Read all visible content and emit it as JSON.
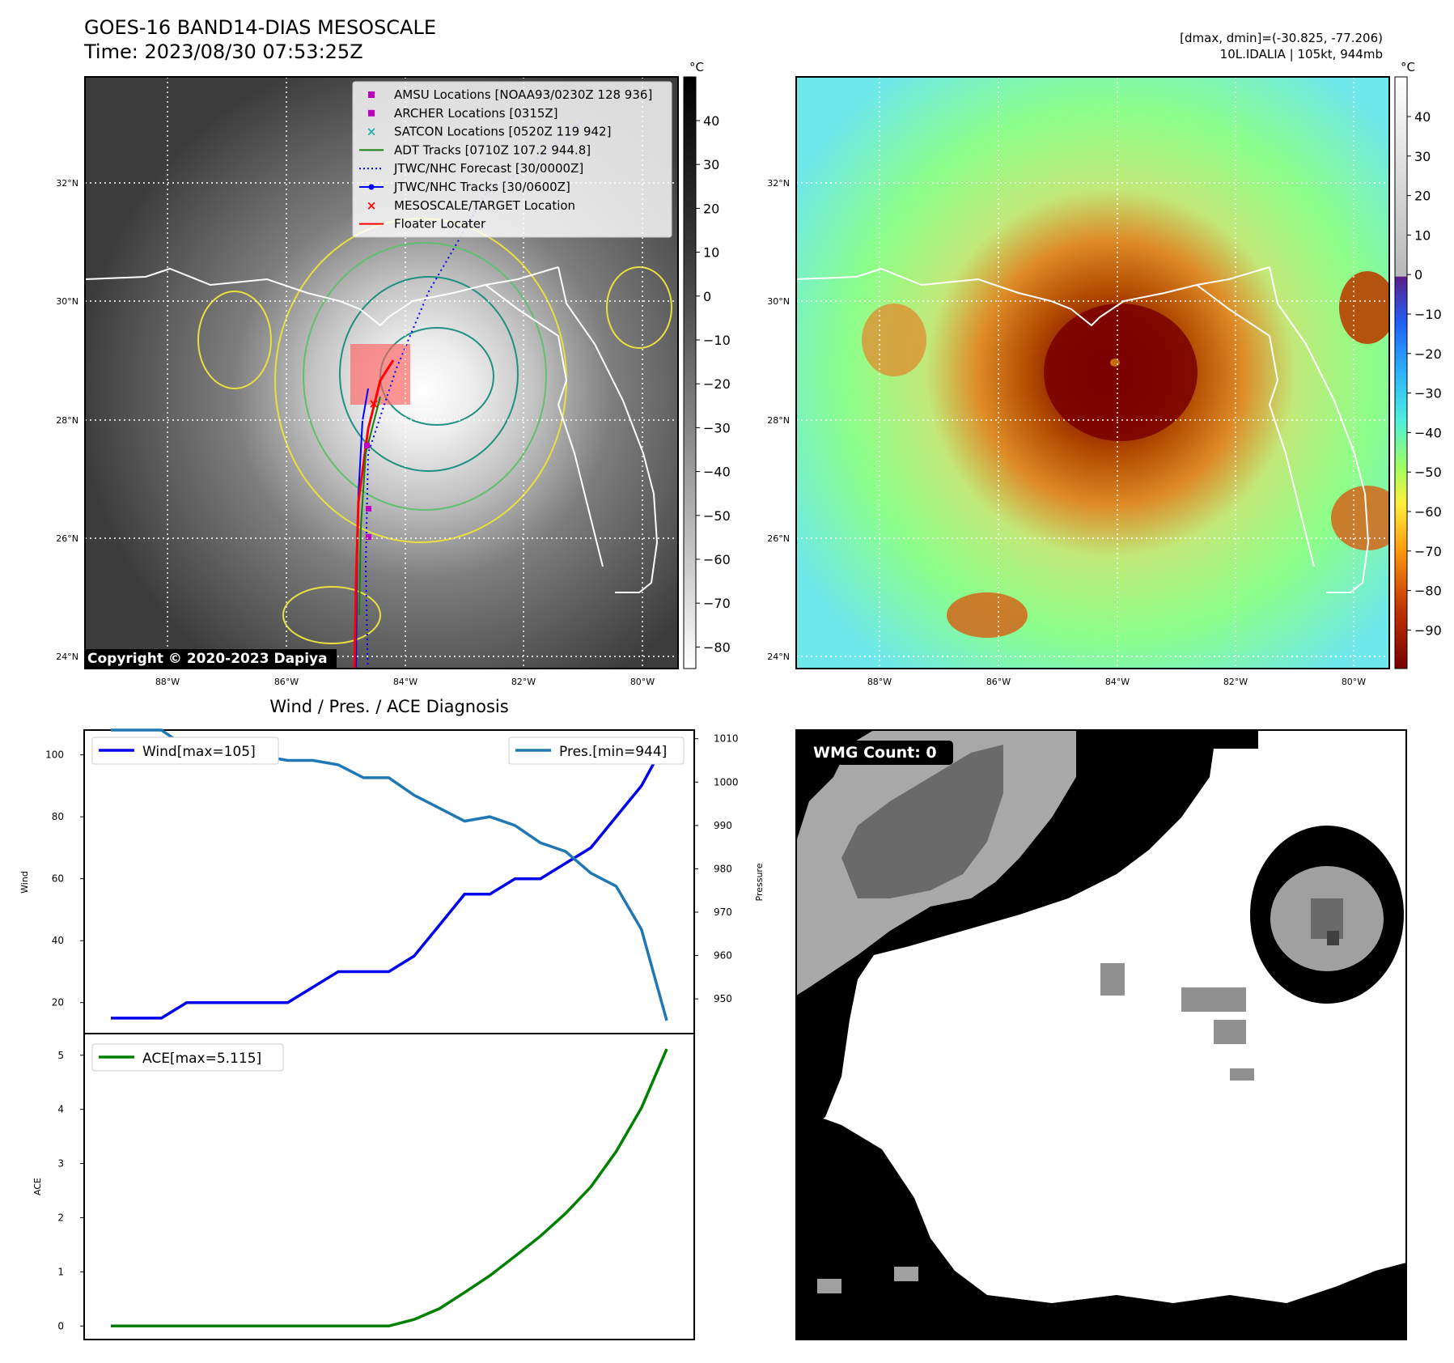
{
  "header": {
    "title": "GOES-16 BAND14-DIAS MESOSCALE",
    "time": "Time: 2023/08/30 07:53:25Z",
    "dmax_dmin": "[dmax, dmin]=(-30.825, -77.206)",
    "storm": "10L.IDALIA | 105kt, 944mb"
  },
  "map_axes": {
    "lat_labels": [
      "32°N",
      "30°N",
      "28°N",
      "26°N",
      "24°N"
    ],
    "lon_labels": [
      "88°W",
      "86°W",
      "84°W",
      "82°W",
      "80°W"
    ]
  },
  "colorbar_left": {
    "unit": "°C",
    "ticks": [
      "40",
      "30",
      "20",
      "10",
      "0",
      "−10",
      "−20",
      "−30",
      "−40",
      "−50",
      "−60",
      "−70",
      "−80"
    ]
  },
  "colorbar_right": {
    "unit": "°C",
    "ticks": [
      "40",
      "30",
      "20",
      "10",
      "0",
      "−10",
      "−20",
      "−30",
      "−40",
      "−50",
      "−60",
      "−70",
      "−80",
      "−90"
    ]
  },
  "legend": [
    {
      "label": "AMSU Locations [NOAA93/0230Z 128 936]",
      "marker": "square",
      "color": "#c000c0"
    },
    {
      "label": "ARCHER Locations [0315Z]",
      "marker": "square",
      "color": "#c000c0"
    },
    {
      "label": "SATCON Locations [0520Z 119 942]",
      "marker": "x",
      "color": "#20b0b0"
    },
    {
      "label": "ADT Tracks [0710Z 107.2 944.8]",
      "marker": "line",
      "color": "#108010"
    },
    {
      "label": "JTWC/NHC Forecast [30/0000Z]",
      "marker": "dotted",
      "color": "#0000ff"
    },
    {
      "label": "JTWC/NHC Tracks [30/0600Z]",
      "marker": "line-dot",
      "color": "#0000ff"
    },
    {
      "label": "MESOSCALE/TARGET Location",
      "marker": "x",
      "color": "#ff0000"
    },
    {
      "label": "Floater Locater",
      "marker": "line",
      "color": "#ff0000"
    }
  ],
  "copyright": "Copyright © 2020-2023 Dapiya",
  "wind_panel_title": "Wind / Pres. / ACE Diagnosis",
  "wmg_label": "WMG Count: 0",
  "colors": {
    "wind": "#0000ee",
    "pressure": "#1f77b4",
    "ace": "#008000"
  },
  "chart_data": [
    {
      "type": "line",
      "ylabel": "Wind",
      "y2label": "Pressure",
      "ylim": [
        10,
        108
      ],
      "y2lim": [
        942,
        1012
      ],
      "yticks": [
        20,
        40,
        60,
        80,
        100
      ],
      "y2ticks": [
        950,
        960,
        970,
        980,
        990,
        1000,
        1010
      ],
      "series": [
        {
          "name": "Wind[max=105]",
          "axis": "left",
          "values": [
            15,
            15,
            15,
            20,
            20,
            20,
            20,
            20,
            25,
            30,
            30,
            30,
            35,
            45,
            55,
            55,
            60,
            60,
            65,
            70,
            80,
            90,
            105
          ]
        },
        {
          "name": "Pres.[min=944]",
          "axis": "right",
          "values": [
            1012,
            1012,
            1012,
            1008,
            1007,
            1006,
            1006,
            1005,
            1005,
            1004,
            1001,
            1001,
            997,
            994,
            991,
            992,
            990,
            986,
            984,
            979,
            976,
            966,
            945
          ]
        }
      ]
    },
    {
      "type": "line",
      "ylabel": "ACE",
      "ylim": [
        -0.25,
        5.4
      ],
      "yticks": [
        0,
        1,
        2,
        3,
        4,
        5
      ],
      "series": [
        {
          "name": "ACE[max=5.115]",
          "values": [
            0,
            0,
            0,
            0,
            0,
            0,
            0,
            0,
            0,
            0,
            0,
            0,
            0.12,
            0.32,
            0.62,
            0.93,
            1.29,
            1.66,
            2.08,
            2.57,
            3.22,
            4.03,
            5.115
          ]
        }
      ]
    }
  ]
}
